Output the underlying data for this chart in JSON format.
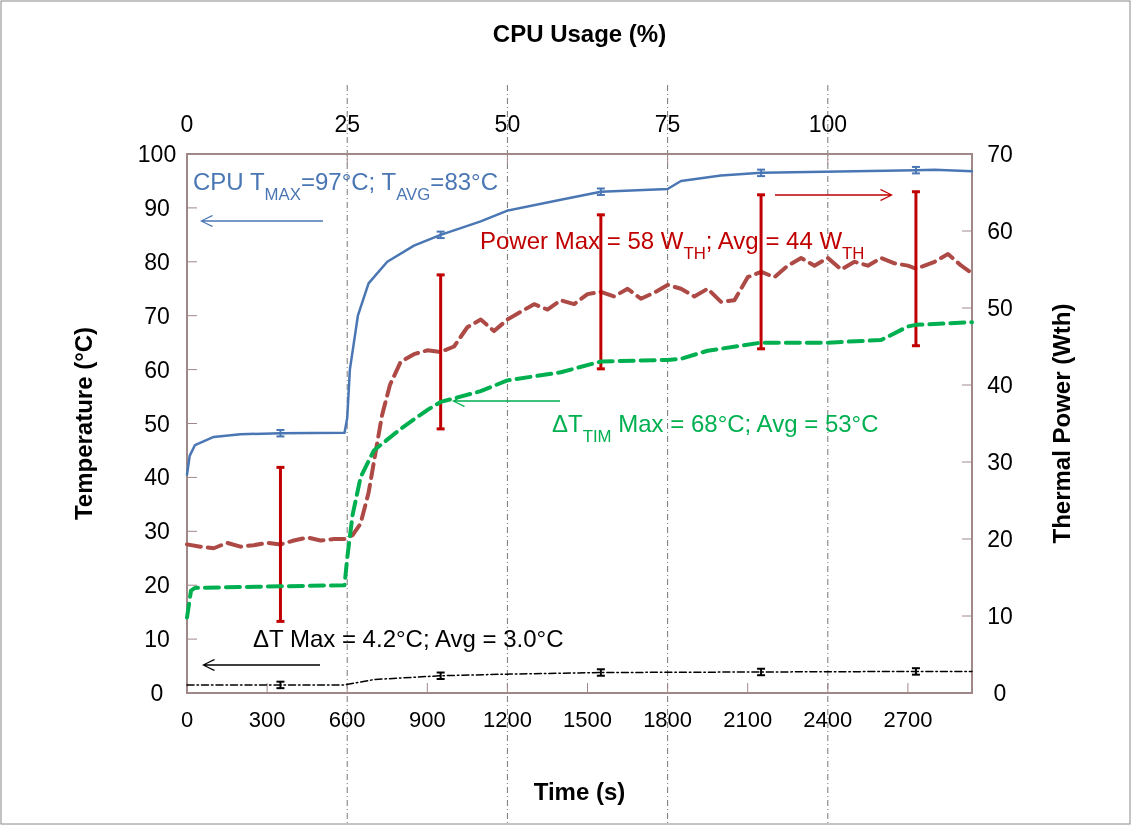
{
  "chart_data": {
    "type": "line",
    "xlabel": "Time (s)",
    "ylabel": "Temperature (°C)",
    "y2label": "Thermal Power (Wth)",
    "x2label": "CPU Usage (%)",
    "xlim": [
      0,
      2940
    ],
    "xticks": [
      0,
      300,
      600,
      900,
      1200,
      1500,
      1800,
      2100,
      2400,
      2700
    ],
    "ylim": [
      0,
      100
    ],
    "yticks": [
      0,
      10,
      20,
      30,
      40,
      50,
      60,
      70,
      80,
      90,
      100
    ],
    "y2lim": [
      0,
      70
    ],
    "y2ticks": [
      0,
      10,
      20,
      30,
      40,
      50,
      60,
      70
    ],
    "x2lim": [
      0,
      122.5
    ],
    "x2ticks": [
      0,
      25,
      50,
      75,
      100
    ],
    "grid": "x2",
    "series": [
      {
        "name": "CPU T$_{MAX}$=97°C; T$_{AVG}$=83°C",
        "color": "#4a77b4",
        "line_style": "solid",
        "x": [
          0,
          10,
          30,
          100,
          200,
          350,
          590,
          600,
          610,
          640,
          680,
          750,
          850,
          950,
          1100,
          1200,
          1400,
          1550,
          1800,
          1850,
          2000,
          2150,
          2500,
          2730,
          2800,
          2940
        ],
        "values": [
          40.5,
          44,
          46,
          47.5,
          48,
          48.2,
          48.3,
          51,
          60,
          70,
          76,
          80,
          83,
          85,
          87.5,
          89.5,
          91.5,
          93,
          93.5,
          95,
          96,
          96.5,
          96.8,
          97,
          97.1,
          96.8
        ],
        "errors": [
          null,
          null,
          null,
          null,
          null,
          0.6,
          null,
          null,
          null,
          null,
          null,
          null,
          null,
          0.6,
          null,
          null,
          null,
          0.6,
          null,
          null,
          null,
          0.6,
          null,
          0.6,
          null,
          null
        ]
      },
      {
        "name": "Power Max = 58 W$_{TH}$; Avg = 44 W$_{TH}$",
        "color": "#ad4a46",
        "axis": "y2",
        "line_style": "dashed",
        "x": [
          0,
          50,
          100,
          150,
          200,
          250,
          300,
          350,
          400,
          450,
          500,
          550,
          590,
          620,
          650,
          680,
          700,
          730,
          760,
          800,
          850,
          900,
          950,
          1000,
          1050,
          1100,
          1150,
          1200,
          1250,
          1300,
          1350,
          1400,
          1450,
          1500,
          1550,
          1600,
          1650,
          1700,
          1750,
          1800,
          1850,
          1900,
          1950,
          2000,
          2050,
          2100,
          2150,
          2200,
          2250,
          2300,
          2350,
          2400,
          2450,
          2500,
          2550,
          2600,
          2650,
          2700,
          2730,
          2800,
          2850,
          2900,
          2940
        ],
        "values": [
          19.3,
          19,
          18.8,
          19.5,
          19,
          19.2,
          19.5,
          19.3,
          19.8,
          20.2,
          19.8,
          20,
          20,
          20.5,
          22,
          26,
          30,
          36,
          40,
          43,
          44,
          44.5,
          44.3,
          45,
          47.5,
          48.5,
          47,
          48.5,
          49.5,
          50.5,
          49.8,
          51,
          50.5,
          51.8,
          52.1,
          51.5,
          52.5,
          51.2,
          52,
          53,
          52.5,
          51.5,
          52.5,
          50.8,
          51,
          54,
          54.7,
          54,
          55.5,
          56.5,
          55.5,
          56.5,
          55,
          56,
          55.5,
          56.5,
          55.8,
          55.5,
          55.1,
          56,
          57,
          55.5,
          54.5
        ],
        "errors": [
          null,
          null,
          null,
          null,
          null,
          null,
          null,
          10,
          null,
          null,
          null,
          null,
          null,
          null,
          null,
          null,
          null,
          null,
          null,
          null,
          null,
          null,
          10,
          null,
          null,
          null,
          null,
          null,
          null,
          null,
          null,
          null,
          null,
          null,
          10,
          null,
          null,
          null,
          null,
          null,
          null,
          null,
          null,
          null,
          null,
          null,
          10,
          null,
          null,
          null,
          null,
          null,
          null,
          null,
          null,
          null,
          null,
          null,
          10,
          null,
          null,
          null,
          null
        ]
      },
      {
        "name": "ΔT$_{TIM}$ Max = 68°C; Avg = 53°C",
        "color": "#00b050",
        "line_style": "dashed",
        "x": [
          0,
          15,
          30,
          350,
          590,
          600,
          620,
          650,
          700,
          800,
          900,
          950,
          1100,
          1200,
          1400,
          1550,
          1800,
          1850,
          1950,
          2150,
          2400,
          2600,
          2700,
          2730,
          2940
        ],
        "values": [
          14,
          19,
          19.5,
          19.8,
          20,
          25,
          33,
          40,
          45,
          49,
          52.5,
          54,
          56,
          58,
          59.5,
          61.5,
          61.8,
          62,
          63.5,
          65,
          65,
          65.5,
          68,
          68.3,
          68.8
        ]
      },
      {
        "name": "ΔT Max = 4.2°C; Avg = 3.0°C",
        "color": "#000000",
        "line_style": "dotted",
        "x": [
          0,
          350,
          590,
          700,
          950,
          1200,
          1550,
          2150,
          2730,
          2940
        ],
        "values": [
          1.5,
          1.5,
          1.5,
          2.5,
          3.2,
          3.5,
          3.8,
          3.9,
          4,
          4
        ],
        "errors": [
          null,
          0.6,
          null,
          null,
          0.6,
          null,
          0.6,
          0.6,
          0.6,
          null
        ]
      }
    ]
  }
}
